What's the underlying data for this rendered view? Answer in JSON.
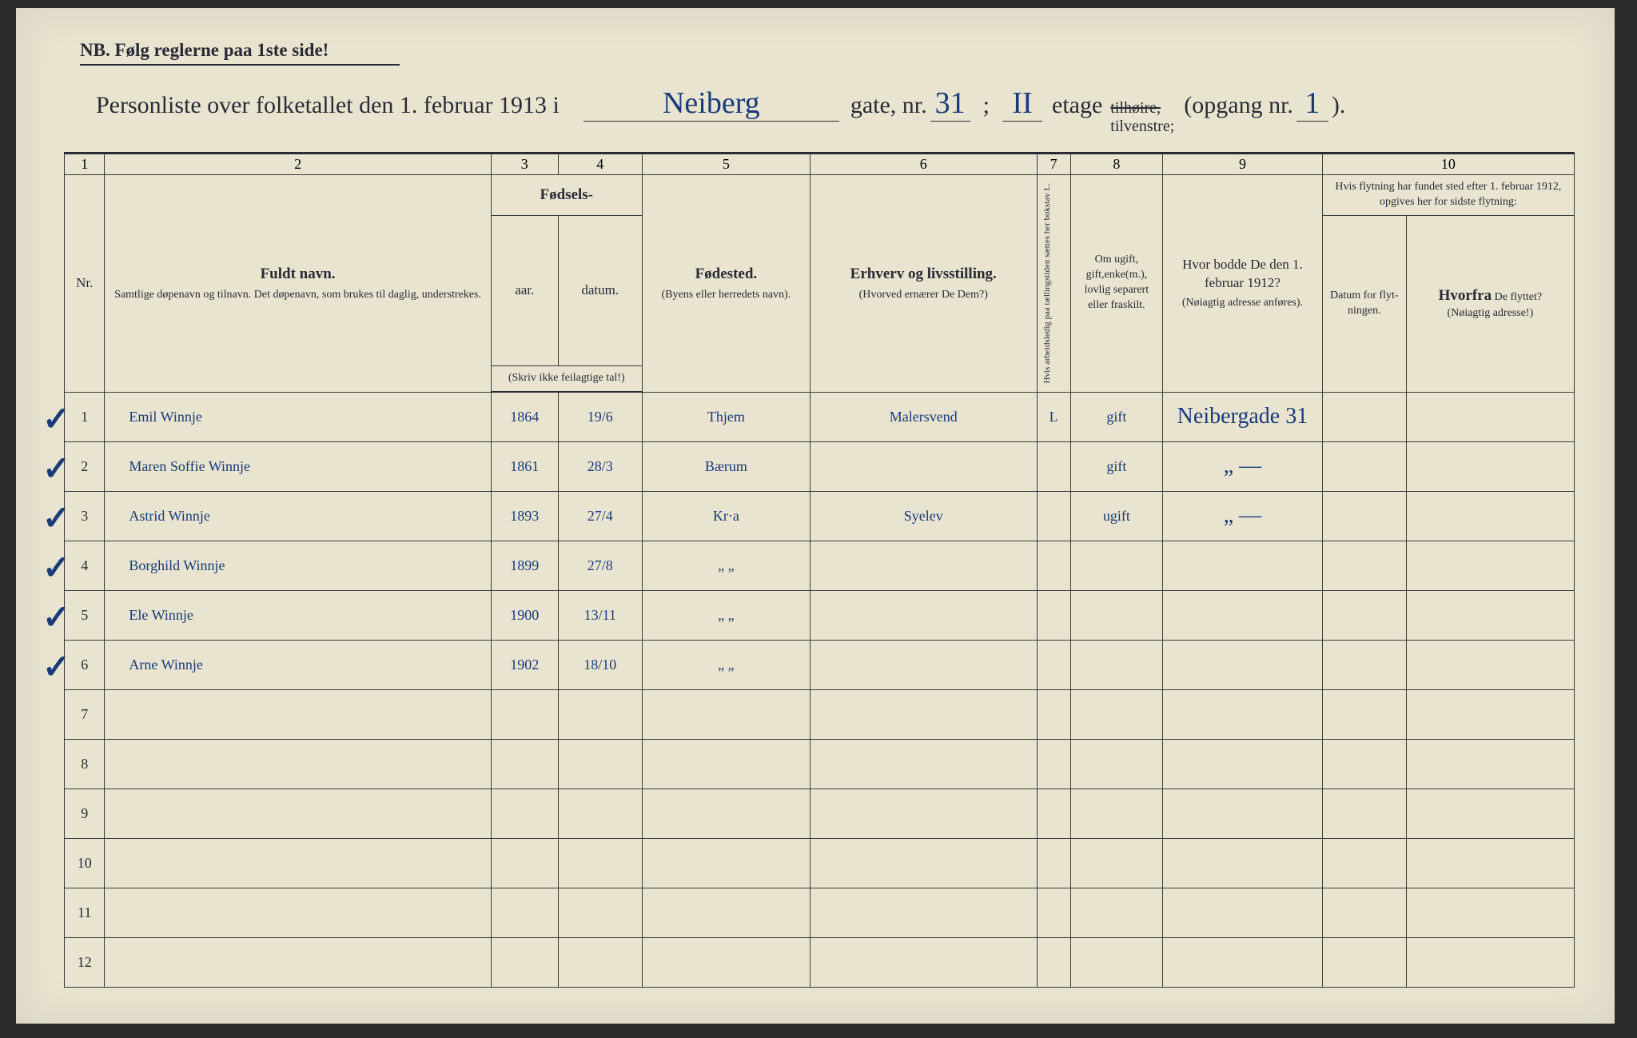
{
  "nb_text": "NB.  Følg reglerne paa 1ste side!",
  "title": {
    "prefix": "Personliste over folketallet den 1. februar 1913 i",
    "street_hw": "Neiberg",
    "gate_label": "gate, nr.",
    "gate_nr_hw": "31",
    "etage_label": "etage",
    "etage_hw": "II",
    "hoire_strike": "tilhøire,",
    "venstre": "tilvenstre;",
    "opgang_label": "(opgang nr.",
    "opgang_hw": "1",
    "close": ")."
  },
  "col_nums": [
    "1",
    "2",
    "3",
    "4",
    "5",
    "6",
    "7",
    "8",
    "9",
    "10"
  ],
  "headers": {
    "nr": "Nr.",
    "fuldt_navn": "Fuldt navn.",
    "fuldt_sub": "Samtlige døpenavn og tilnavn.  Det døpenavn, som brukes til daglig, understrekes.",
    "fodsels": "Fødsels-",
    "aar": "aar.",
    "datum": "datum.",
    "skriv": "(Skriv ikke feilagtige tal!)",
    "fodested": "Fødested.",
    "fodested_sub": "(Byens eller herredets navn).",
    "erhverv": "Erhverv og livsstilling.",
    "erhverv_sub": "(Hvorved ernærer De Dem?)",
    "col7_vert": "Hvis arbeidsledig paa tællingstiden sættes her bokstav L.",
    "col8": "Om ugift, gift,enke(m.), lovlig separert eller fraskilt.",
    "col9": "Hvor bodde De den 1. februar 1912?",
    "col9_sub": "(Nøiagtig adresse anføres).",
    "col10": "Hvis flytning har fundet sted efter 1. februar 1912, opgives her for sidste flytning:",
    "col10a": "Datum for flyt-ningen.",
    "col10b": "Hvorfra De flyttet? (Nøiagtig adresse!)"
  },
  "rows": [
    {
      "nr": "1",
      "check": "✓",
      "name": "Emil Winnje",
      "yr": "1864",
      "date": "19/6",
      "place": "Thjem",
      "occ": "Malersvend",
      "c7": "L",
      "c8": "gift",
      "c9": "Neibergade 31",
      "c10a": "",
      "c10b": ""
    },
    {
      "nr": "2",
      "check": "✓",
      "name": "Maren Soffie Winnje",
      "yr": "1861",
      "date": "28/3",
      "place": "Bærum",
      "occ": "",
      "c7": "",
      "c8": "gift",
      "c9": "„  —",
      "c10a": "",
      "c10b": ""
    },
    {
      "nr": "3",
      "check": "✓",
      "name": "Astrid Winnje",
      "yr": "1893",
      "date": "27/4",
      "place": "Kr·a",
      "occ": "Syelev",
      "c7": "",
      "c8": "ugift",
      "c9": "„  —",
      "c10a": "",
      "c10b": ""
    },
    {
      "nr": "4",
      "check": "✓",
      "name": "Borghild Winnje",
      "yr": "1899",
      "date": "27/8",
      "place": "„   „",
      "occ": "",
      "c7": "",
      "c8": "",
      "c9": "",
      "c10a": "",
      "c10b": ""
    },
    {
      "nr": "5",
      "check": "✓",
      "name": "Ele Winnje",
      "yr": "1900",
      "date": "13/11",
      "place": "„   „",
      "occ": "",
      "c7": "",
      "c8": "",
      "c9": "",
      "c10a": "",
      "c10b": ""
    },
    {
      "nr": "6",
      "check": "✓",
      "name": "Arne Winnje",
      "yr": "1902",
      "date": "18/10",
      "place": "„   „",
      "occ": "",
      "c7": "",
      "c8": "",
      "c9": "",
      "c10a": "",
      "c10b": ""
    },
    {
      "nr": "7",
      "check": "",
      "name": "",
      "yr": "",
      "date": "",
      "place": "",
      "occ": "",
      "c7": "",
      "c8": "",
      "c9": "",
      "c10a": "",
      "c10b": ""
    },
    {
      "nr": "8",
      "check": "",
      "name": "",
      "yr": "",
      "date": "",
      "place": "",
      "occ": "",
      "c7": "",
      "c8": "",
      "c9": "",
      "c10a": "",
      "c10b": ""
    },
    {
      "nr": "9",
      "check": "",
      "name": "",
      "yr": "",
      "date": "",
      "place": "",
      "occ": "",
      "c7": "",
      "c8": "",
      "c9": "",
      "c10a": "",
      "c10b": ""
    },
    {
      "nr": "10",
      "check": "",
      "name": "",
      "yr": "",
      "date": "",
      "place": "",
      "occ": "",
      "c7": "",
      "c8": "",
      "c9": "",
      "c10a": "",
      "c10b": ""
    },
    {
      "nr": "11",
      "check": "",
      "name": "",
      "yr": "",
      "date": "",
      "place": "",
      "occ": "",
      "c7": "",
      "c8": "",
      "c9": "",
      "c10a": "",
      "c10b": ""
    },
    {
      "nr": "12",
      "check": "",
      "name": "",
      "yr": "",
      "date": "",
      "place": "",
      "occ": "",
      "c7": "",
      "c8": "",
      "c9": "",
      "c10a": "",
      "c10b": ""
    }
  ],
  "colors": {
    "paper": "#e8e4d0",
    "ink": "#2a2a35",
    "handwriting": "#1a3a7a"
  }
}
